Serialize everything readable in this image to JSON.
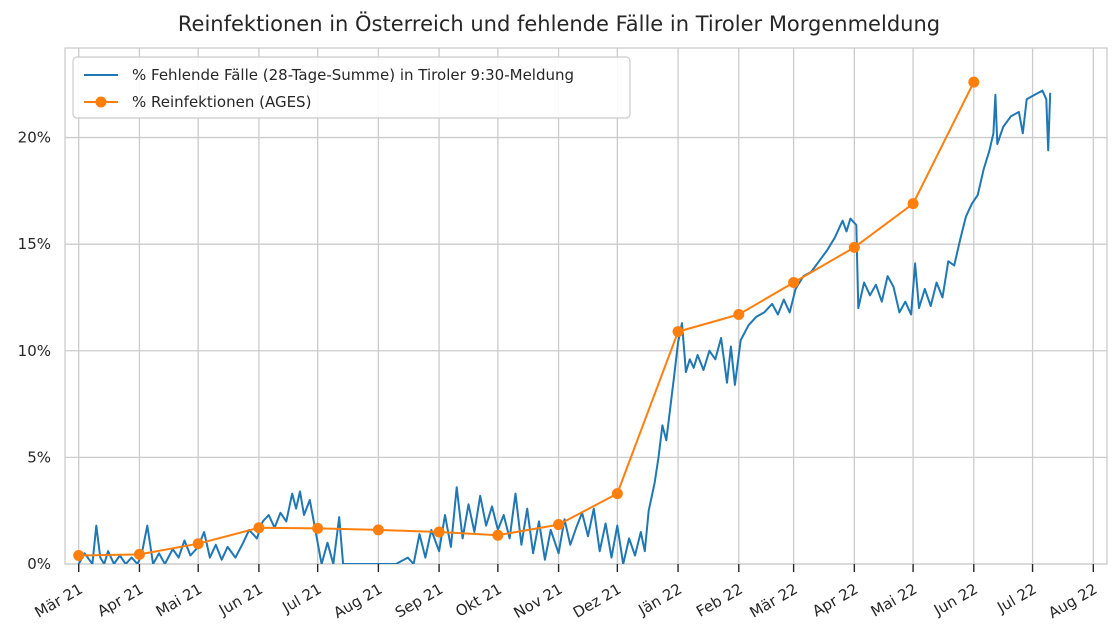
{
  "chart_data": {
    "type": "line",
    "title": "Reinfektionen in Österreich und fehlende Fälle in Tiroler Morgenmeldung",
    "xlabel": "",
    "ylabel": "",
    "x_axis": {
      "type": "date",
      "range": [
        "2021-02-22",
        "2022-08-08"
      ],
      "tick_dates": [
        "2021-03-01",
        "2021-04-01",
        "2021-05-01",
        "2021-06-01",
        "2021-07-01",
        "2021-08-01",
        "2021-09-01",
        "2021-10-01",
        "2021-11-01",
        "2021-12-01",
        "2022-01-01",
        "2022-02-01",
        "2022-03-01",
        "2022-04-01",
        "2022-05-01",
        "2022-06-01",
        "2022-07-01",
        "2022-08-01"
      ],
      "tick_labels": [
        "Mär 21",
        "Apr 21",
        "Mai 21",
        "Jun 21",
        "Jul 21",
        "Aug 21",
        "Sep 21",
        "Okt 21",
        "Nov 21",
        "Dez 21",
        "Jän 22",
        "Feb 22",
        "Mär 22",
        "Apr 22",
        "Mai 22",
        "Jun 22",
        "Jul 22",
        "Aug 22"
      ]
    },
    "y_axis": {
      "range": [
        0,
        24.2
      ],
      "ticks": [
        0,
        5,
        10,
        15,
        20
      ],
      "tick_labels": [
        "0%",
        "5%",
        "10%",
        "15%",
        "20%"
      ]
    },
    "grid": true,
    "legend": "top-left",
    "series": [
      {
        "name": "% Fehlende Fälle (28-Tage-Summe) in Tiroler 9:30-Meldung",
        "color": "#1f77b4",
        "marker": "none",
        "points": [
          [
            "2021-03-01",
            0.0
          ],
          [
            "2021-03-04",
            0.5
          ],
          [
            "2021-03-08",
            0.0
          ],
          [
            "2021-03-10",
            1.8
          ],
          [
            "2021-03-12",
            0.3
          ],
          [
            "2021-03-14",
            0.0
          ],
          [
            "2021-03-16",
            0.6
          ],
          [
            "2021-03-19",
            0.0
          ],
          [
            "2021-03-22",
            0.4
          ],
          [
            "2021-03-25",
            0.0
          ],
          [
            "2021-03-28",
            0.3
          ],
          [
            "2021-03-31",
            0.0
          ],
          [
            "2021-04-02",
            0.4
          ],
          [
            "2021-04-05",
            1.8
          ],
          [
            "2021-04-08",
            0.0
          ],
          [
            "2021-04-11",
            0.5
          ],
          [
            "2021-04-14",
            0.0
          ],
          [
            "2021-04-18",
            0.7
          ],
          [
            "2021-04-21",
            0.3
          ],
          [
            "2021-04-24",
            1.1
          ],
          [
            "2021-04-27",
            0.4
          ],
          [
            "2021-05-01",
            0.8
          ],
          [
            "2021-05-04",
            1.5
          ],
          [
            "2021-05-07",
            0.3
          ],
          [
            "2021-05-10",
            0.9
          ],
          [
            "2021-05-13",
            0.2
          ],
          [
            "2021-05-16",
            0.8
          ],
          [
            "2021-05-20",
            0.3
          ],
          [
            "2021-05-24",
            1.0
          ],
          [
            "2021-05-27",
            1.6
          ],
          [
            "2021-05-31",
            1.2
          ],
          [
            "2021-06-03",
            2.0
          ],
          [
            "2021-06-06",
            2.3
          ],
          [
            "2021-06-09",
            1.7
          ],
          [
            "2021-06-12",
            2.4
          ],
          [
            "2021-06-15",
            2.0
          ],
          [
            "2021-06-18",
            3.3
          ],
          [
            "2021-06-20",
            2.6
          ],
          [
            "2021-06-22",
            3.4
          ],
          [
            "2021-06-24",
            2.3
          ],
          [
            "2021-06-27",
            3.0
          ],
          [
            "2021-06-30",
            1.5
          ],
          [
            "2021-07-03",
            0.0
          ],
          [
            "2021-07-06",
            1.0
          ],
          [
            "2021-07-09",
            0.0
          ],
          [
            "2021-07-12",
            2.2
          ],
          [
            "2021-07-14",
            0.0
          ],
          [
            "2021-07-18",
            0.0
          ],
          [
            "2021-08-01",
            0.0
          ],
          [
            "2021-08-10",
            0.0
          ],
          [
            "2021-08-16",
            0.3
          ],
          [
            "2021-08-19",
            0.0
          ],
          [
            "2021-08-22",
            1.4
          ],
          [
            "2021-08-25",
            0.3
          ],
          [
            "2021-08-28",
            1.6
          ],
          [
            "2021-09-01",
            0.6
          ],
          [
            "2021-09-04",
            2.3
          ],
          [
            "2021-09-07",
            0.8
          ],
          [
            "2021-09-10",
            3.6
          ],
          [
            "2021-09-13",
            1.2
          ],
          [
            "2021-09-16",
            2.8
          ],
          [
            "2021-09-19",
            1.5
          ],
          [
            "2021-09-22",
            3.2
          ],
          [
            "2021-09-25",
            1.8
          ],
          [
            "2021-09-28",
            2.7
          ],
          [
            "2021-10-01",
            1.6
          ],
          [
            "2021-10-04",
            2.3
          ],
          [
            "2021-10-07",
            1.2
          ],
          [
            "2021-10-10",
            3.3
          ],
          [
            "2021-10-13",
            0.9
          ],
          [
            "2021-10-16",
            2.6
          ],
          [
            "2021-10-19",
            0.5
          ],
          [
            "2021-10-22",
            2.0
          ],
          [
            "2021-10-25",
            0.2
          ],
          [
            "2021-10-28",
            1.6
          ],
          [
            "2021-11-01",
            0.5
          ],
          [
            "2021-11-04",
            2.1
          ],
          [
            "2021-11-07",
            0.9
          ],
          [
            "2021-11-10",
            1.7
          ],
          [
            "2021-11-13",
            2.4
          ],
          [
            "2021-11-16",
            1.3
          ],
          [
            "2021-11-19",
            2.6
          ],
          [
            "2021-11-22",
            0.6
          ],
          [
            "2021-11-25",
            1.9
          ],
          [
            "2021-11-28",
            0.3
          ],
          [
            "2021-12-01",
            1.8
          ],
          [
            "2021-12-04",
            0.0
          ],
          [
            "2021-12-07",
            1.2
          ],
          [
            "2021-12-10",
            0.4
          ],
          [
            "2021-12-13",
            1.5
          ],
          [
            "2021-12-15",
            0.6
          ],
          [
            "2021-12-17",
            2.5
          ],
          [
            "2021-12-20",
            3.8
          ],
          [
            "2021-12-22",
            5.0
          ],
          [
            "2021-12-24",
            6.5
          ],
          [
            "2021-12-26",
            5.8
          ],
          [
            "2021-12-28",
            7.3
          ],
          [
            "2021-12-30",
            8.8
          ],
          [
            "2022-01-01",
            10.4
          ],
          [
            "2022-01-03",
            11.3
          ],
          [
            "2022-01-05",
            9.0
          ],
          [
            "2022-01-07",
            9.6
          ],
          [
            "2022-01-09",
            9.2
          ],
          [
            "2022-01-11",
            9.8
          ],
          [
            "2022-01-14",
            9.1
          ],
          [
            "2022-01-17",
            10.0
          ],
          [
            "2022-01-20",
            9.6
          ],
          [
            "2022-01-23",
            10.6
          ],
          [
            "2022-01-26",
            8.5
          ],
          [
            "2022-01-28",
            10.2
          ],
          [
            "2022-01-30",
            8.4
          ],
          [
            "2022-02-02",
            10.5
          ],
          [
            "2022-02-06",
            11.2
          ],
          [
            "2022-02-10",
            11.6
          ],
          [
            "2022-02-14",
            11.8
          ],
          [
            "2022-02-18",
            12.2
          ],
          [
            "2022-02-21",
            11.7
          ],
          [
            "2022-02-24",
            12.4
          ],
          [
            "2022-02-27",
            11.8
          ],
          [
            "2022-03-02",
            12.9
          ],
          [
            "2022-03-06",
            13.5
          ],
          [
            "2022-03-10",
            13.7
          ],
          [
            "2022-03-14",
            14.2
          ],
          [
            "2022-03-18",
            14.7
          ],
          [
            "2022-03-22",
            15.3
          ],
          [
            "2022-03-26",
            16.1
          ],
          [
            "2022-03-28",
            15.6
          ],
          [
            "2022-03-30",
            16.2
          ],
          [
            "2022-04-02",
            15.9
          ],
          [
            "2022-04-03",
            12.0
          ],
          [
            "2022-04-06",
            13.2
          ],
          [
            "2022-04-09",
            12.6
          ],
          [
            "2022-04-12",
            13.1
          ],
          [
            "2022-04-15",
            12.3
          ],
          [
            "2022-04-18",
            13.5
          ],
          [
            "2022-04-21",
            13.0
          ],
          [
            "2022-04-24",
            11.8
          ],
          [
            "2022-04-27",
            12.3
          ],
          [
            "2022-04-30",
            11.7
          ],
          [
            "2022-05-02",
            14.1
          ],
          [
            "2022-05-04",
            12.0
          ],
          [
            "2022-05-07",
            12.9
          ],
          [
            "2022-05-10",
            12.1
          ],
          [
            "2022-05-13",
            13.2
          ],
          [
            "2022-05-16",
            12.5
          ],
          [
            "2022-05-19",
            14.2
          ],
          [
            "2022-05-22",
            14.0
          ],
          [
            "2022-05-25",
            15.2
          ],
          [
            "2022-05-28",
            16.3
          ],
          [
            "2022-05-31",
            16.9
          ],
          [
            "2022-06-03",
            17.3
          ],
          [
            "2022-06-06",
            18.5
          ],
          [
            "2022-06-09",
            19.4
          ],
          [
            "2022-06-11",
            20.2
          ],
          [
            "2022-06-12",
            22.0
          ],
          [
            "2022-06-13",
            19.7
          ],
          [
            "2022-06-16",
            20.5
          ],
          [
            "2022-06-20",
            21.0
          ],
          [
            "2022-06-24",
            21.2
          ],
          [
            "2022-06-26",
            20.2
          ],
          [
            "2022-06-28",
            21.8
          ],
          [
            "2022-07-02",
            22.0
          ],
          [
            "2022-07-06",
            22.2
          ],
          [
            "2022-07-08",
            21.8
          ],
          [
            "2022-07-09",
            19.4
          ],
          [
            "2022-07-10",
            22.1
          ]
        ]
      },
      {
        "name": "% Reinfektionen (AGES)",
        "color": "#ff7f0e",
        "marker": "circle",
        "points": [
          [
            "2021-03-01",
            0.4
          ],
          [
            "2021-04-01",
            0.45
          ],
          [
            "2021-05-01",
            0.95
          ],
          [
            "2021-06-01",
            1.7
          ],
          [
            "2021-07-01",
            1.67
          ],
          [
            "2021-08-01",
            1.6
          ],
          [
            "2021-09-01",
            1.5
          ],
          [
            "2021-10-01",
            1.35
          ],
          [
            "2021-11-01",
            1.85
          ],
          [
            "2021-12-01",
            3.3
          ],
          [
            "2022-01-01",
            10.9
          ],
          [
            "2022-02-01",
            11.7
          ],
          [
            "2022-03-01",
            13.2
          ],
          [
            "2022-04-01",
            14.85
          ],
          [
            "2022-05-01",
            16.9
          ],
          [
            "2022-06-01",
            22.6
          ]
        ]
      }
    ]
  },
  "colors": {
    "grid": "#cccccc",
    "axes": "#cccccc",
    "text": "#262626"
  }
}
